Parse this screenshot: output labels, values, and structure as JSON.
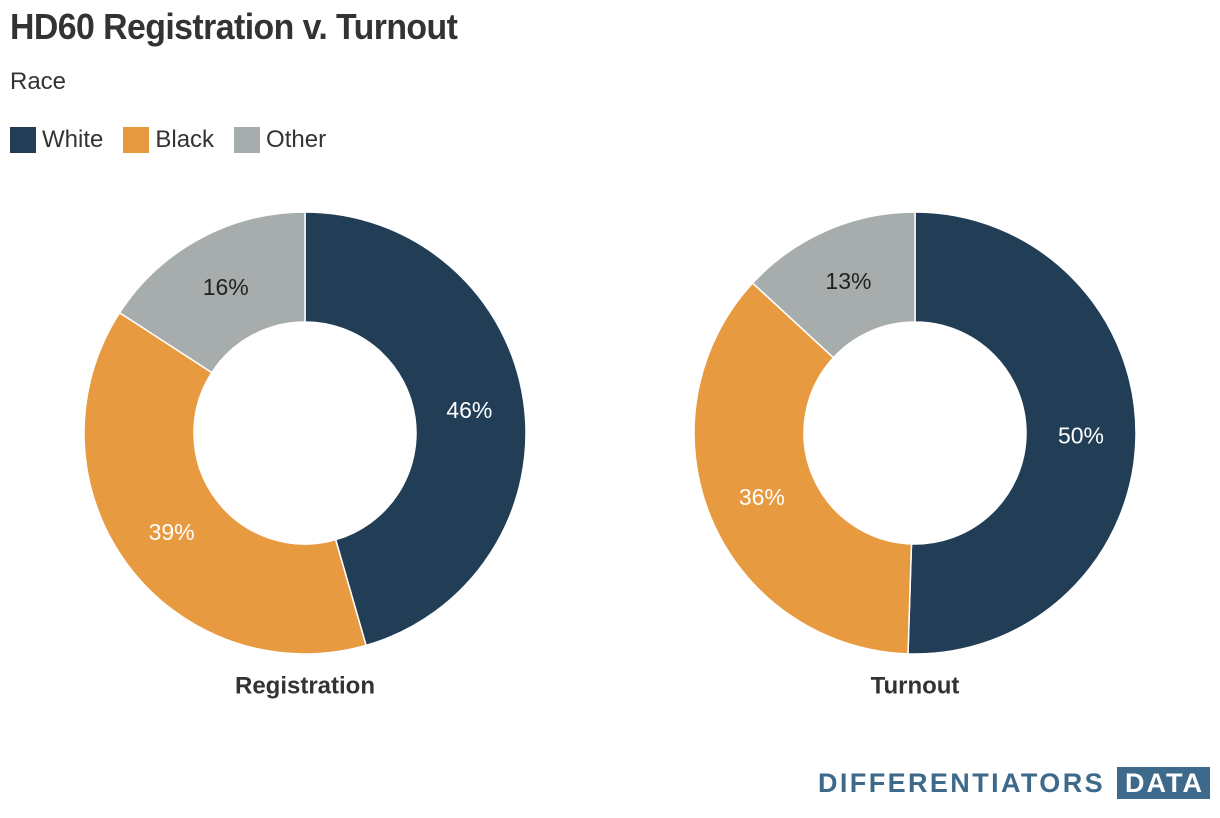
{
  "header": {
    "title": "HD60 Registration v. Turnout",
    "subtitle": "Race"
  },
  "legend": [
    {
      "label": "White",
      "color": "#223e57"
    },
    {
      "label": "Black",
      "color": "#e89a41"
    },
    {
      "label": "Other",
      "color": "#a7adad"
    }
  ],
  "chart_data": [
    {
      "type": "pie",
      "title": "Registration",
      "categories": [
        "White",
        "Black",
        "Other"
      ],
      "values": [
        46,
        39,
        16
      ],
      "labels": [
        "46%",
        "39%",
        "16%"
      ],
      "colors": [
        "#223e57",
        "#e89a41",
        "#a7adad"
      ]
    },
    {
      "type": "pie",
      "title": "Turnout",
      "categories": [
        "White",
        "Black",
        "Other"
      ],
      "values": [
        50,
        36,
        13
      ],
      "labels": [
        "50%",
        "36%",
        "13%"
      ],
      "colors": [
        "#223e57",
        "#e89a41",
        "#a7adad"
      ]
    }
  ],
  "brand": {
    "name": "DIFFERENTIATORS",
    "badge": "DATA"
  }
}
